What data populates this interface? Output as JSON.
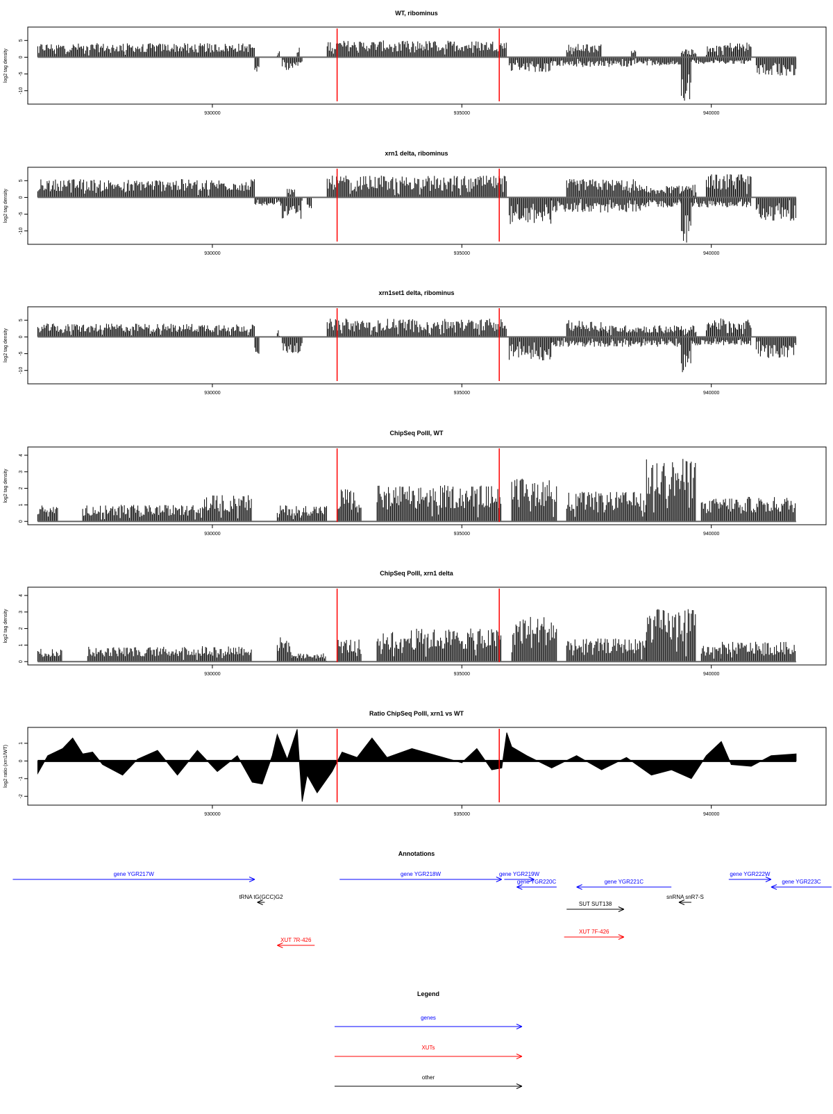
{
  "chart_data": [
    {
      "type": "bar",
      "title": "WT, ribominus",
      "ylabel": "log2 tag density",
      "xlim": [
        926300,
        942300
      ],
      "ylim": [
        -14,
        9
      ],
      "yticks": [
        5,
        0,
        -5,
        -10
      ],
      "xticks": [
        930000,
        935000,
        940000
      ],
      "marker_lines_x": [
        932500,
        935750
      ],
      "baseline": 0,
      "series": [
        {
          "strand": "plus",
          "segments": [
            {
              "x0": 926500,
              "x1": 930850,
              "level": 4.2
            },
            {
              "x0": 931300,
              "x1": 931350,
              "level": 2.0
            },
            {
              "x0": 931700,
              "x1": 931750,
              "level": 3.5
            },
            {
              "x0": 932300,
              "x1": 935900,
              "level": 5.0
            },
            {
              "x0": 937100,
              "x1": 937800,
              "level": 4.0
            },
            {
              "x0": 938400,
              "x1": 938500,
              "level": 3.0
            },
            {
              "x0": 939400,
              "x1": 939700,
              "level": 2.5
            },
            {
              "x0": 939900,
              "x1": 940800,
              "level": 4.5
            }
          ]
        },
        {
          "strand": "minus",
          "segments": [
            {
              "x0": 930850,
              "x1": 930950,
              "level": -5.0
            },
            {
              "x0": 931400,
              "x1": 931800,
              "level": -4.0
            },
            {
              "x0": 935950,
              "x1": 936800,
              "level": -4.5
            },
            {
              "x0": 936800,
              "x1": 938400,
              "level": -3.0
            },
            {
              "x0": 938400,
              "x1": 939400,
              "level": -2.5
            },
            {
              "x0": 939400,
              "x1": 939600,
              "level": -13.0
            },
            {
              "x0": 939600,
              "x1": 940800,
              "level": -2.0
            },
            {
              "x0": 940900,
              "x1": 941700,
              "level": -5.5
            }
          ]
        }
      ]
    },
    {
      "type": "bar",
      "title": "xrn1 delta, ribominus",
      "ylabel": "log2 tag density",
      "xlim": [
        926300,
        942300
      ],
      "ylim": [
        -14,
        9
      ],
      "yticks": [
        5,
        0,
        -5,
        -10
      ],
      "xticks": [
        930000,
        935000,
        940000
      ],
      "marker_lines_x": [
        932500,
        935750
      ],
      "baseline": 0,
      "series": [
        {
          "strand": "plus",
          "segments": [
            {
              "x0": 926500,
              "x1": 930850,
              "level": 5.5
            },
            {
              "x0": 931500,
              "x1": 931650,
              "level": 3.0
            },
            {
              "x0": 932300,
              "x1": 935900,
              "level": 6.5
            },
            {
              "x0": 937100,
              "x1": 938600,
              "level": 5.5
            },
            {
              "x0": 938600,
              "x1": 939400,
              "level": 3.5
            },
            {
              "x0": 939400,
              "x1": 939700,
              "level": 4.0
            },
            {
              "x0": 939900,
              "x1": 940800,
              "level": 7.0
            }
          ]
        },
        {
          "strand": "minus",
          "segments": [
            {
              "x0": 930850,
              "x1": 931400,
              "level": -2.5
            },
            {
              "x0": 931400,
              "x1": 931800,
              "level": -6.5
            },
            {
              "x0": 931900,
              "x1": 932000,
              "level": -3.5
            },
            {
              "x0": 935950,
              "x1": 936800,
              "level": -8.0
            },
            {
              "x0": 936800,
              "x1": 938600,
              "level": -4.5
            },
            {
              "x0": 938600,
              "x1": 939400,
              "level": -3.0
            },
            {
              "x0": 939400,
              "x1": 939600,
              "level": -13.5
            },
            {
              "x0": 939600,
              "x1": 940800,
              "level": -3.0
            },
            {
              "x0": 940900,
              "x1": 941700,
              "level": -7.0
            }
          ]
        }
      ]
    },
    {
      "type": "bar",
      "title": "xrn1set1 delta, ribominus",
      "ylabel": "log2 tag density",
      "xlim": [
        926300,
        942300
      ],
      "ylim": [
        -14,
        9
      ],
      "yticks": [
        5,
        0,
        -5,
        -10
      ],
      "xticks": [
        930000,
        935000,
        940000
      ],
      "marker_lines_x": [
        932500,
        935750
      ],
      "baseline": 0,
      "series": [
        {
          "strand": "plus",
          "segments": [
            {
              "x0": 926500,
              "x1": 930850,
              "level": 4.0
            },
            {
              "x0": 931300,
              "x1": 931350,
              "level": 2.0
            },
            {
              "x0": 932300,
              "x1": 935900,
              "level": 5.5
            },
            {
              "x0": 937100,
              "x1": 937800,
              "level": 5.0
            },
            {
              "x0": 937800,
              "x1": 939400,
              "level": 3.5
            },
            {
              "x0": 939400,
              "x1": 939700,
              "level": 3.5
            },
            {
              "x0": 939900,
              "x1": 940800,
              "level": 5.5
            }
          ]
        },
        {
          "strand": "minus",
          "segments": [
            {
              "x0": 930850,
              "x1": 930950,
              "level": -5.5
            },
            {
              "x0": 931400,
              "x1": 931800,
              "level": -5.0
            },
            {
              "x0": 935950,
              "x1": 936800,
              "level": -7.0
            },
            {
              "x0": 936800,
              "x1": 938400,
              "level": -3.0
            },
            {
              "x0": 938400,
              "x1": 939400,
              "level": -3.0
            },
            {
              "x0": 939400,
              "x1": 939600,
              "level": -11.5
            },
            {
              "x0": 939600,
              "x1": 940800,
              "level": -2.5
            },
            {
              "x0": 940900,
              "x1": 941700,
              "level": -6.5
            }
          ]
        }
      ]
    },
    {
      "type": "bar",
      "title": "ChipSeq PolII, WT",
      "ylabel": "log2 tag density",
      "xlim": [
        926300,
        942300
      ],
      "ylim": [
        -0.2,
        4.5
      ],
      "yticks": [
        0,
        1,
        2,
        3,
        4
      ],
      "xticks": [
        930000,
        935000,
        940000
      ],
      "marker_lines_x": [
        932500,
        935750
      ],
      "baseline": 0,
      "series": [
        {
          "strand": "plus",
          "segments": [
            {
              "x0": 926500,
              "x1": 926900,
              "level": 1.0
            },
            {
              "x0": 927400,
              "x1": 929800,
              "level": 1.0
            },
            {
              "x0": 929800,
              "x1": 930800,
              "level": 1.6
            },
            {
              "x0": 931300,
              "x1": 931600,
              "level": 1.0
            },
            {
              "x0": 931600,
              "x1": 932300,
              "level": 1.0
            },
            {
              "x0": 932500,
              "x1": 933000,
              "level": 2.0
            },
            {
              "x0": 933300,
              "x1": 935800,
              "level": 2.2
            },
            {
              "x0": 936000,
              "x1": 936900,
              "level": 2.6
            },
            {
              "x0": 937100,
              "x1": 938700,
              "level": 1.8
            },
            {
              "x0": 938700,
              "x1": 939700,
              "level": 3.8
            },
            {
              "x0": 939800,
              "x1": 940200,
              "level": 1.4
            },
            {
              "x0": 940200,
              "x1": 941700,
              "level": 1.5
            }
          ]
        }
      ]
    },
    {
      "type": "bar",
      "title": "ChipSeq PolII, xrn1 delta",
      "ylabel": "log2 tag density",
      "xlim": [
        926300,
        942300
      ],
      "ylim": [
        -0.2,
        4.5
      ],
      "yticks": [
        0,
        1,
        2,
        3,
        4
      ],
      "xticks": [
        930000,
        935000,
        940000
      ],
      "marker_lines_x": [
        932500,
        935750
      ],
      "baseline": 0,
      "series": [
        {
          "strand": "plus",
          "segments": [
            {
              "x0": 926500,
              "x1": 927000,
              "level": 0.8
            },
            {
              "x0": 927500,
              "x1": 929800,
              "level": 0.9
            },
            {
              "x0": 929800,
              "x1": 930800,
              "level": 1.0
            },
            {
              "x0": 931300,
              "x1": 931600,
              "level": 1.5
            },
            {
              "x0": 931600,
              "x1": 932300,
              "level": 0.5
            },
            {
              "x0": 932500,
              "x1": 933000,
              "level": 1.4
            },
            {
              "x0": 933300,
              "x1": 935800,
              "level": 2.0
            },
            {
              "x0": 936000,
              "x1": 936900,
              "level": 2.8
            },
            {
              "x0": 937100,
              "x1": 938700,
              "level": 1.4
            },
            {
              "x0": 938700,
              "x1": 939700,
              "level": 3.2
            },
            {
              "x0": 939800,
              "x1": 940200,
              "level": 1.0
            },
            {
              "x0": 940200,
              "x1": 941700,
              "level": 1.2
            }
          ]
        }
      ]
    },
    {
      "type": "area",
      "title": "Ratio ChipSeq PolII, xrn1 vs WT",
      "ylabel": "log2 ratio (xrn1/WT)",
      "xlim": [
        926300,
        942300
      ],
      "ylim": [
        -2.5,
        1.9
      ],
      "yticks": [
        1,
        0,
        -1,
        -2
      ],
      "xticks": [
        930000,
        935000,
        940000
      ],
      "marker_lines_x": [
        932500,
        935750
      ],
      "baseline": 0,
      "series": [
        {
          "name": "",
          "points": [
            [
              926500,
              -0.7
            ],
            [
              926700,
              0.3
            ],
            [
              927000,
              0.7
            ],
            [
              927200,
              1.3
            ],
            [
              927400,
              0.4
            ],
            [
              927600,
              0.5
            ],
            [
              927800,
              -0.2
            ],
            [
              928200,
              -0.8
            ],
            [
              928500,
              0.1
            ],
            [
              928900,
              0.6
            ],
            [
              929300,
              -0.8
            ],
            [
              929700,
              0.6
            ],
            [
              930100,
              -0.6
            ],
            [
              930500,
              0.3
            ],
            [
              930800,
              -1.2
            ],
            [
              931000,
              -1.3
            ],
            [
              931200,
              0.3
            ],
            [
              931300,
              1.5
            ],
            [
              931500,
              0.1
            ],
            [
              931700,
              1.8
            ],
            [
              931800,
              -2.3
            ],
            [
              931900,
              -0.8
            ],
            [
              932100,
              -1.8
            ],
            [
              932400,
              -0.6
            ],
            [
              932600,
              0.5
            ],
            [
              932900,
              0.2
            ],
            [
              933200,
              1.3
            ],
            [
              933500,
              0.2
            ],
            [
              934000,
              0.7
            ],
            [
              934500,
              0.3
            ],
            [
              935000,
              -0.1
            ],
            [
              935300,
              0.7
            ],
            [
              935600,
              -0.5
            ],
            [
              935800,
              -0.4
            ],
            [
              935900,
              1.6
            ],
            [
              936000,
              0.8
            ],
            [
              936300,
              0.3
            ],
            [
              936800,
              -0.4
            ],
            [
              937300,
              0.3
            ],
            [
              937800,
              -0.5
            ],
            [
              938300,
              0.2
            ],
            [
              938800,
              -0.8
            ],
            [
              939200,
              -0.5
            ],
            [
              939600,
              -1.0
            ],
            [
              939900,
              0.3
            ],
            [
              940200,
              1.1
            ],
            [
              940400,
              -0.2
            ],
            [
              940800,
              -0.3
            ],
            [
              941200,
              0.3
            ],
            [
              941700,
              0.4
            ]
          ]
        }
      ]
    }
  ],
  "annotations": {
    "title": "Annotations",
    "features": [
      {
        "label": "gene YGR217W",
        "kind": "gene",
        "x0": 926000,
        "x1": 930850,
        "dir": "right",
        "row": 1
      },
      {
        "label": "gene YGR218W",
        "kind": "gene",
        "x0": 932550,
        "x1": 935800,
        "dir": "right",
        "row": 1
      },
      {
        "label": "gene YGR219W",
        "kind": "gene",
        "x0": 935850,
        "x1": 936450,
        "dir": "right",
        "row": 1
      },
      {
        "label": "gene YGR222W",
        "kind": "gene",
        "x0": 940350,
        "x1": 941200,
        "dir": "right",
        "row": 1
      },
      {
        "label": "gene YGR220C",
        "kind": "gene",
        "x0": 936100,
        "x1": 936900,
        "dir": "left",
        "row": 2
      },
      {
        "label": "gene YGR221C",
        "kind": "gene",
        "x0": 937300,
        "x1": 939200,
        "dir": "left",
        "row": 2
      },
      {
        "label": "gene YGR223C",
        "kind": "gene",
        "x0": 941200,
        "x1": 942600,
        "dir": "left",
        "row": 2
      },
      {
        "label": "tRNA tG(GCC)G2",
        "kind": "other",
        "x0": 930900,
        "x1": 931050,
        "dir": "left",
        "row": 3
      },
      {
        "label": "snRNA snR7-S",
        "kind": "other",
        "x0": 939350,
        "x1": 939600,
        "dir": "left",
        "row": 3
      },
      {
        "label": "SUT SUT138",
        "kind": "other",
        "x0": 937100,
        "x1": 938250,
        "dir": "right",
        "row": 4
      },
      {
        "label": "XUT 7F-426",
        "kind": "xut",
        "x0": 937050,
        "x1": 938250,
        "dir": "right",
        "row": 5
      },
      {
        "label": "XUT 7R-426",
        "kind": "xut",
        "x0": 931300,
        "x1": 932050,
        "dir": "left",
        "row": 6
      }
    ]
  },
  "legend": {
    "title": "Legend",
    "entries": [
      {
        "label": "genes",
        "kind": "gene"
      },
      {
        "label": "XUTs",
        "kind": "xut"
      },
      {
        "label": "other",
        "kind": "other"
      }
    ]
  },
  "colors": {
    "gene": "#0000ff",
    "xut": "#ff0000",
    "other": "#000000",
    "marker": "#ff0000",
    "bars": "#000000",
    "baseline": "#666666"
  }
}
